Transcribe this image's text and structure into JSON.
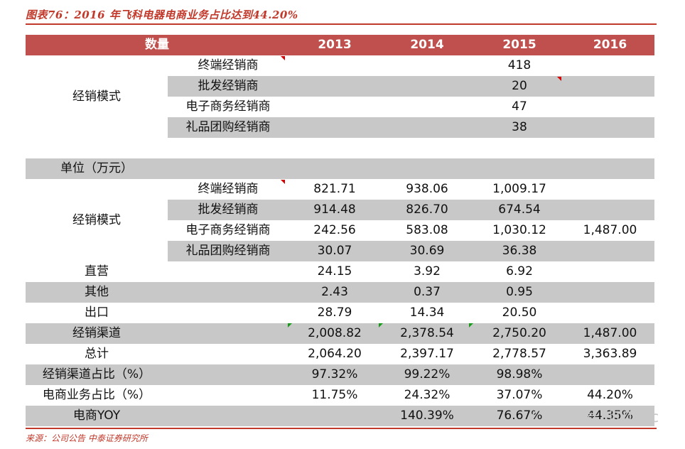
{
  "title": "图表76：2016 年飞科电器电商业务占比达到44.20%",
  "source": "来源：公司公告  中泰证券研究所",
  "watermark": "微信号: i100ec",
  "header": {
    "label": "数量",
    "years": [
      "2013",
      "2014",
      "2015",
      "2016"
    ]
  },
  "section1": {
    "group_label": "经销模式",
    "rows": [
      {
        "sub": "终端经销商",
        "values": [
          "",
          "",
          "418",
          ""
        ]
      },
      {
        "sub": "批发经销商",
        "values": [
          "",
          "",
          "20",
          ""
        ]
      },
      {
        "sub": "电子商务经销商",
        "values": [
          "",
          "",
          "47",
          ""
        ]
      },
      {
        "sub": "礼品团购经销商",
        "values": [
          "",
          "",
          "38",
          ""
        ]
      }
    ]
  },
  "unit_label": "单位（万元）",
  "section2": {
    "group_label": "经销模式",
    "rows": [
      {
        "sub": "终端经销商",
        "values": [
          "821.71",
          "938.06",
          "1,009.17",
          ""
        ]
      },
      {
        "sub": "批发经销商",
        "values": [
          "914.48",
          "826.70",
          "674.54",
          ""
        ]
      },
      {
        "sub": "电子商务经销商",
        "values": [
          "242.56",
          "583.08",
          "1,030.12",
          "1,487.00"
        ]
      },
      {
        "sub": "礼品团购经销商",
        "values": [
          "30.07",
          "30.69",
          "36.38",
          ""
        ]
      }
    ]
  },
  "rows": [
    {
      "label": "直营",
      "values": [
        "24.15",
        "3.92",
        "6.92",
        ""
      ]
    },
    {
      "label": "其他",
      "values": [
        "2.43",
        "0.37",
        "0.95",
        ""
      ]
    },
    {
      "label": "出口",
      "values": [
        "28.79",
        "14.34",
        "20.50",
        ""
      ]
    },
    {
      "label": "经销渠道",
      "values": [
        "2,008.82",
        "2,378.54",
        "2,750.20",
        "1,487.00"
      ]
    },
    {
      "label": "总计",
      "values": [
        "2,064.20",
        "2,397.17",
        "2,778.57",
        "3,363.89"
      ]
    },
    {
      "label": "经销渠道占比（%）",
      "values": [
        "97.32%",
        "99.22%",
        "98.98%",
        ""
      ]
    },
    {
      "label": "电商业务占比（%）",
      "values": [
        "11.75%",
        "24.32%",
        "37.07%",
        "44.20%"
      ]
    },
    {
      "label": "电商YOY",
      "values": [
        "",
        "140.39%",
        "76.67%",
        "44.35%"
      ]
    }
  ]
}
